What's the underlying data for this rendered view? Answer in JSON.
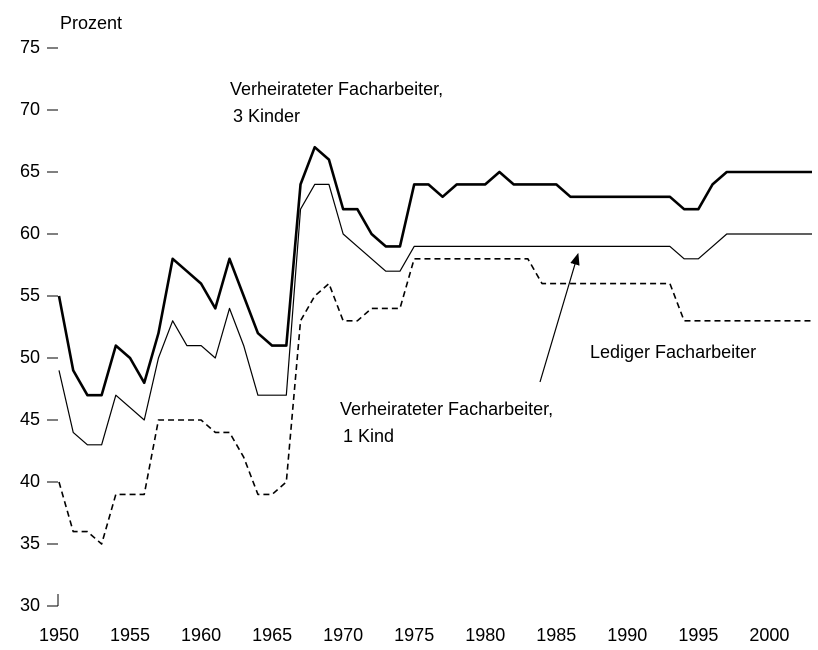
{
  "chart_data": {
    "type": "line",
    "y_axis_label": "Prozent",
    "x": [
      1950,
      1951,
      1952,
      1953,
      1954,
      1955,
      1956,
      1957,
      1958,
      1959,
      1960,
      1961,
      1962,
      1963,
      1964,
      1965,
      1966,
      1967,
      1968,
      1969,
      1970,
      1971,
      1972,
      1973,
      1974,
      1975,
      1976,
      1977,
      1978,
      1979,
      1980,
      1981,
      1982,
      1983,
      1984,
      1985,
      1986,
      1987,
      1988,
      1989,
      1990,
      1991,
      1992,
      1993,
      1994,
      1995,
      1996,
      1997,
      1998,
      1999,
      2000,
      2001,
      2002,
      2003
    ],
    "series": [
      {
        "color": "#000000",
        "style": "bold",
        "values": [
          55,
          49,
          47,
          47,
          51,
          50,
          48,
          52,
          58,
          57,
          56,
          54,
          58,
          55,
          52,
          51,
          51,
          64,
          67,
          66,
          62,
          62,
          60,
          59,
          59,
          64,
          64,
          63,
          64,
          64,
          64,
          65,
          64,
          64,
          64,
          64,
          63,
          63,
          63,
          63,
          63,
          63,
          63,
          63,
          62,
          62,
          64,
          65,
          65,
          65,
          65,
          65,
          65,
          65
        ]
      },
      {
        "color": "#000000",
        "style": "thin",
        "values": [
          49,
          44,
          43,
          43,
          47,
          46,
          45,
          50,
          53,
          51,
          51,
          50,
          54,
          51,
          47,
          47,
          47,
          62,
          64,
          64,
          60,
          59,
          58,
          57,
          57,
          59,
          59,
          59,
          59,
          59,
          59,
          59,
          59,
          59,
          59,
          59,
          59,
          59,
          59,
          59,
          59,
          59,
          59,
          59,
          58,
          58,
          59,
          60,
          60,
          60,
          60,
          60,
          60,
          60
        ]
      },
      {
        "color": "#000000",
        "style": "dashed",
        "values": [
          40,
          36,
          36,
          35,
          39,
          39,
          39,
          45,
          45,
          45,
          45,
          44,
          44,
          42,
          39,
          39,
          40,
          53,
          55,
          56,
          53,
          53,
          54,
          54,
          54,
          58,
          58,
          58,
          58,
          58,
          58,
          58,
          58,
          58,
          56,
          56,
          56,
          56,
          56,
          56,
          56,
          56,
          56,
          56,
          53,
          53,
          53,
          53,
          53,
          53,
          53,
          53,
          53,
          53
        ]
      }
    ],
    "annotations": [
      {
        "lines": [
          "Verheirateter Facharbeiter,",
          "3 Kinder"
        ]
      },
      {
        "lines": [
          "Lediger Facharbeiter"
        ]
      },
      {
        "lines": [
          "Verheirateter Facharbeiter,",
          "1 Kind"
        ]
      }
    ],
    "xlim": [
      1950,
      2003
    ],
    "xticks": [
      1950,
      1955,
      1960,
      1965,
      1970,
      1975,
      1980,
      1985,
      1990,
      1995,
      2000
    ],
    "ylim": [
      30,
      75
    ],
    "yticks": [
      30,
      35,
      40,
      45,
      50,
      55,
      60,
      65,
      70,
      75
    ]
  }
}
